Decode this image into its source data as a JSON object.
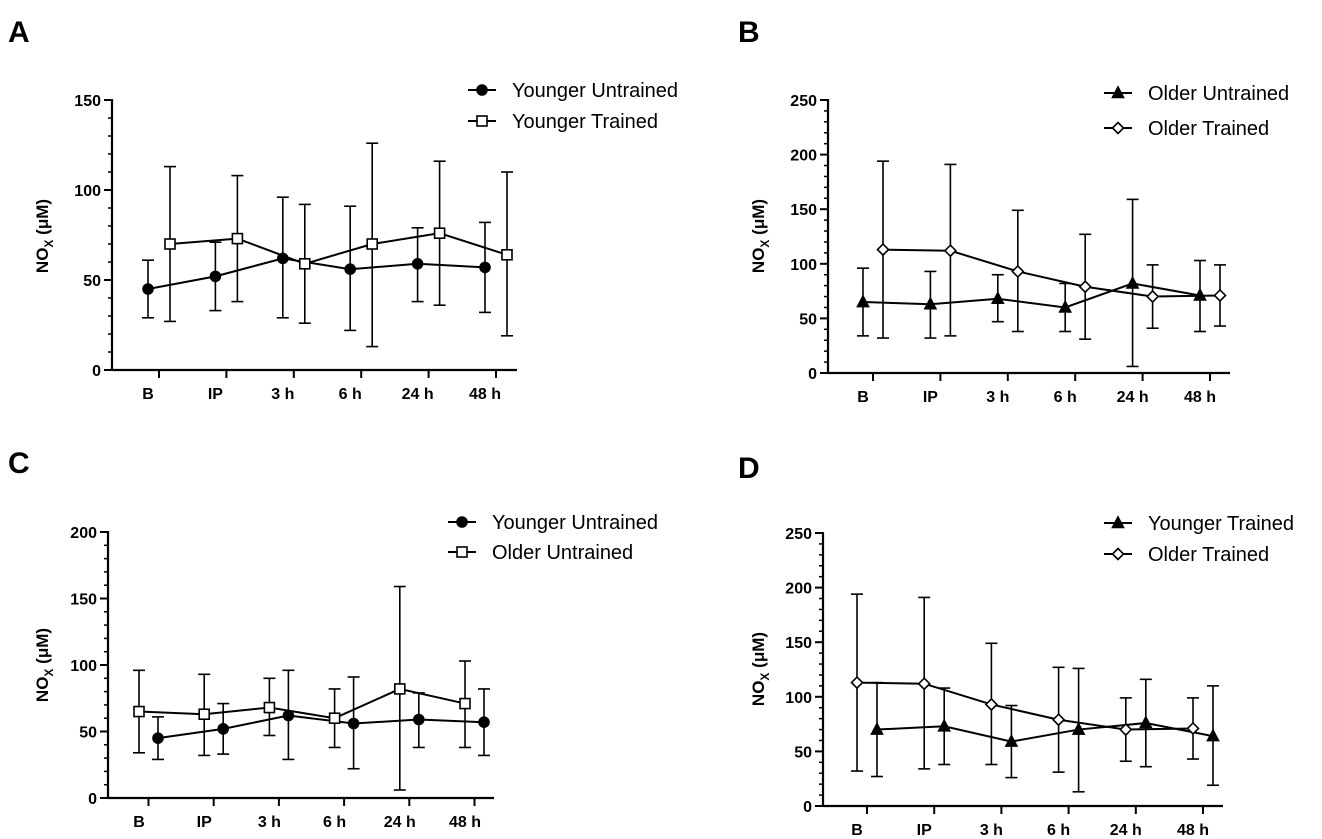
{
  "panels": [
    {
      "letter": "A",
      "ylabel": "NO",
      "ylabel_sub": "X",
      "ylabel_unit": "(μM)",
      "chart_data": {
        "type": "line",
        "categories": [
          "B",
          "IP",
          "3 h",
          "6 h",
          "24 h",
          "48 h"
        ],
        "ylim": [
          0,
          150
        ],
        "yticks": [
          0,
          50,
          100,
          150
        ],
        "legend_position": "top-right",
        "series": [
          {
            "name": "Younger Untrained",
            "marker": "filled-circle",
            "offset": 0,
            "values": [
              45,
              52,
              62,
              56,
              59,
              57
            ],
            "err_low": [
              29,
              33,
              29,
              22,
              38,
              32
            ],
            "err_high": [
              61,
              71,
              96,
              91,
              79,
              82
            ]
          },
          {
            "name": "Younger Trained",
            "marker": "open-square",
            "offset": 1,
            "values": [
              70,
              73,
              59,
              70,
              76,
              64
            ],
            "err_low": [
              27,
              38,
              26,
              13,
              36,
              19
            ],
            "err_high": [
              113,
              108,
              92,
              126,
              116,
              110
            ]
          }
        ]
      }
    },
    {
      "letter": "B",
      "ylabel": "NO",
      "ylabel_sub": "X",
      "ylabel_unit": "(μM)",
      "chart_data": {
        "type": "line",
        "categories": [
          "B",
          "IP",
          "3 h",
          "6 h",
          "24 h",
          "48 h"
        ],
        "ylim": [
          0,
          250
        ],
        "yticks": [
          0,
          50,
          100,
          150,
          200,
          250
        ],
        "legend_position": "top-right",
        "series": [
          {
            "name": "Older Untrained",
            "marker": "filled-triangle",
            "offset": 0,
            "values": [
              65,
              63,
              68,
              60,
              82,
              71
            ],
            "err_low": [
              34,
              32,
              47,
              38,
              6,
              38
            ],
            "err_high": [
              96,
              93,
              90,
              82,
              159,
              103
            ]
          },
          {
            "name": "Older Trained",
            "marker": "open-diamond",
            "offset": 1,
            "values": [
              113,
              112,
              93,
              79,
              70,
              71
            ],
            "err_low": [
              32,
              34,
              38,
              31,
              41,
              43
            ],
            "err_high": [
              194,
              191,
              149,
              127,
              99,
              99
            ]
          }
        ]
      }
    },
    {
      "letter": "C",
      "ylabel": "NO",
      "ylabel_sub": "X",
      "ylabel_unit": "(μM)",
      "chart_data": {
        "type": "line",
        "categories": [
          "B",
          "IP",
          "3 h",
          "6 h",
          "24 h",
          "48 h"
        ],
        "ylim": [
          0,
          200
        ],
        "yticks": [
          0,
          50,
          100,
          150,
          200
        ],
        "legend_position": "top-right",
        "series": [
          {
            "name": "Younger Untrained",
            "marker": "filled-circle",
            "offset": 1,
            "values": [
              45,
              52,
              62,
              56,
              59,
              57
            ],
            "err_low": [
              29,
              33,
              29,
              22,
              38,
              32
            ],
            "err_high": [
              61,
              71,
              96,
              91,
              79,
              82
            ]
          },
          {
            "name": "Older Untrained",
            "marker": "open-square",
            "offset": 0,
            "values": [
              65,
              63,
              68,
              60,
              82,
              71
            ],
            "err_low": [
              34,
              32,
              47,
              38,
              6,
              38
            ],
            "err_high": [
              96,
              93,
              90,
              82,
              159,
              103
            ]
          }
        ]
      }
    },
    {
      "letter": "D",
      "ylabel": "NO",
      "ylabel_sub": "X",
      "ylabel_unit": "(μM)",
      "chart_data": {
        "type": "line",
        "categories": [
          "B",
          "IP",
          "3 h",
          "6 h",
          "24 h",
          "48 h"
        ],
        "ylim": [
          0,
          250
        ],
        "yticks": [
          0,
          50,
          100,
          150,
          200,
          250
        ],
        "legend_position": "top-right",
        "series": [
          {
            "name": "Younger Trained",
            "marker": "filled-triangle",
            "offset": 1,
            "values": [
              70,
              73,
              59,
              70,
              76,
              64
            ],
            "err_low": [
              27,
              38,
              26,
              13,
              36,
              19
            ],
            "err_high": [
              113,
              108,
              92,
              126,
              116,
              110
            ]
          },
          {
            "name": "Older Trained",
            "marker": "open-diamond",
            "offset": 0,
            "values": [
              113,
              112,
              93,
              79,
              70,
              71
            ],
            "err_low": [
              32,
              34,
              38,
              31,
              41,
              43
            ],
            "err_high": [
              194,
              191,
              149,
              127,
              99,
              99
            ]
          }
        ]
      }
    }
  ]
}
